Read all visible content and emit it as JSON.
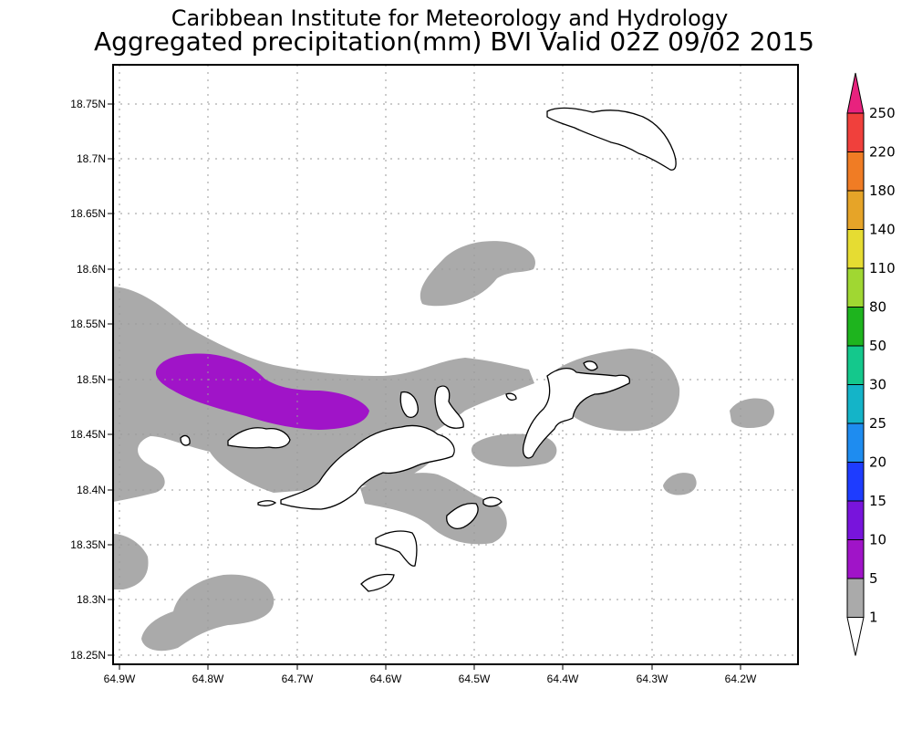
{
  "title": {
    "line1": "Caribbean Institute for Meteorology and Hydrology",
    "line2": "Aggregated precipitation(mm) BVI Valid 02Z 09/02 2015"
  },
  "lat_ticks": [
    {
      "value": 18.75,
      "label": "18.75N"
    },
    {
      "value": 18.7,
      "label": "18.7N"
    },
    {
      "value": 18.65,
      "label": "18.65N"
    },
    {
      "value": 18.6,
      "label": "18.6N"
    },
    {
      "value": 18.55,
      "label": "18.55N"
    },
    {
      "value": 18.5,
      "label": "18.5N"
    },
    {
      "value": 18.45,
      "label": "18.45N"
    },
    {
      "value": 18.4,
      "label": "18.4N"
    },
    {
      "value": 18.35,
      "label": "18.35N"
    },
    {
      "value": 18.3,
      "label": "18.3N"
    },
    {
      "value": 18.25,
      "label": "18.25N"
    }
  ],
  "lon_ticks": [
    {
      "value": -64.9,
      "label": "64.9W"
    },
    {
      "value": -64.8,
      "label": "64.8W"
    },
    {
      "value": -64.7,
      "label": "64.7W"
    },
    {
      "value": -64.6,
      "label": "64.6W"
    },
    {
      "value": -64.5,
      "label": "64.5W"
    },
    {
      "value": -64.4,
      "label": "64.4W"
    },
    {
      "value": -64.3,
      "label": "64.3W"
    },
    {
      "value": -64.2,
      "label": "64.2W"
    }
  ],
  "colorbar": {
    "levels": [
      {
        "label": "250",
        "color": "#e8227e"
      },
      {
        "label": "220",
        "color": "#f0403c"
      },
      {
        "label": "180",
        "color": "#f07c24"
      },
      {
        "label": "140",
        "color": "#e6a428"
      },
      {
        "label": "110",
        "color": "#e6dc32"
      },
      {
        "label": "80",
        "color": "#a0d732"
      },
      {
        "label": "50",
        "color": "#1eb41e"
      },
      {
        "label": "30",
        "color": "#14c88c"
      },
      {
        "label": "25",
        "color": "#14b4c8"
      },
      {
        "label": "20",
        "color": "#1e8cf0"
      },
      {
        "label": "15",
        "color": "#1e3cff"
      },
      {
        "label": "10",
        "color": "#7814dc"
      },
      {
        "label": "5",
        "color": "#a014c8"
      },
      {
        "label": "1",
        "color": "#aaaaaa"
      }
    ],
    "bottom_color": "#ffffff"
  },
  "colors": {
    "light_rain": "#aaaaaa",
    "moderate_rain": "#a014c8"
  }
}
